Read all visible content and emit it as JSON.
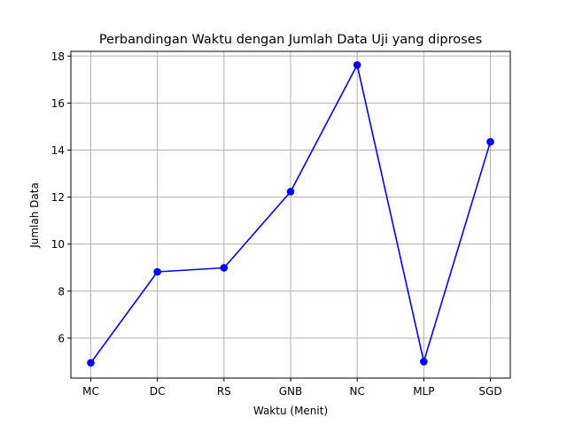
{
  "chart_data": {
    "type": "line",
    "title": "Perbandingan Waktu dengan Jumlah Data Uji yang diproses",
    "xlabel": "Waktu (Menit)",
    "ylabel": "Jumlah Data",
    "categories": [
      "MC",
      "DC",
      "RS",
      "GNB",
      "NC",
      "MLP",
      "SGD"
    ],
    "series": [
      {
        "values": [
          4.95,
          8.82,
          8.99,
          12.23,
          17.62,
          5.0,
          14.35
        ],
        "color": "#0000ff",
        "marker": "circle"
      }
    ],
    "ylim": [
      4.3,
      18.2
    ],
    "yticks": [
      6,
      8,
      10,
      12,
      14,
      16,
      18
    ],
    "grid": true
  }
}
